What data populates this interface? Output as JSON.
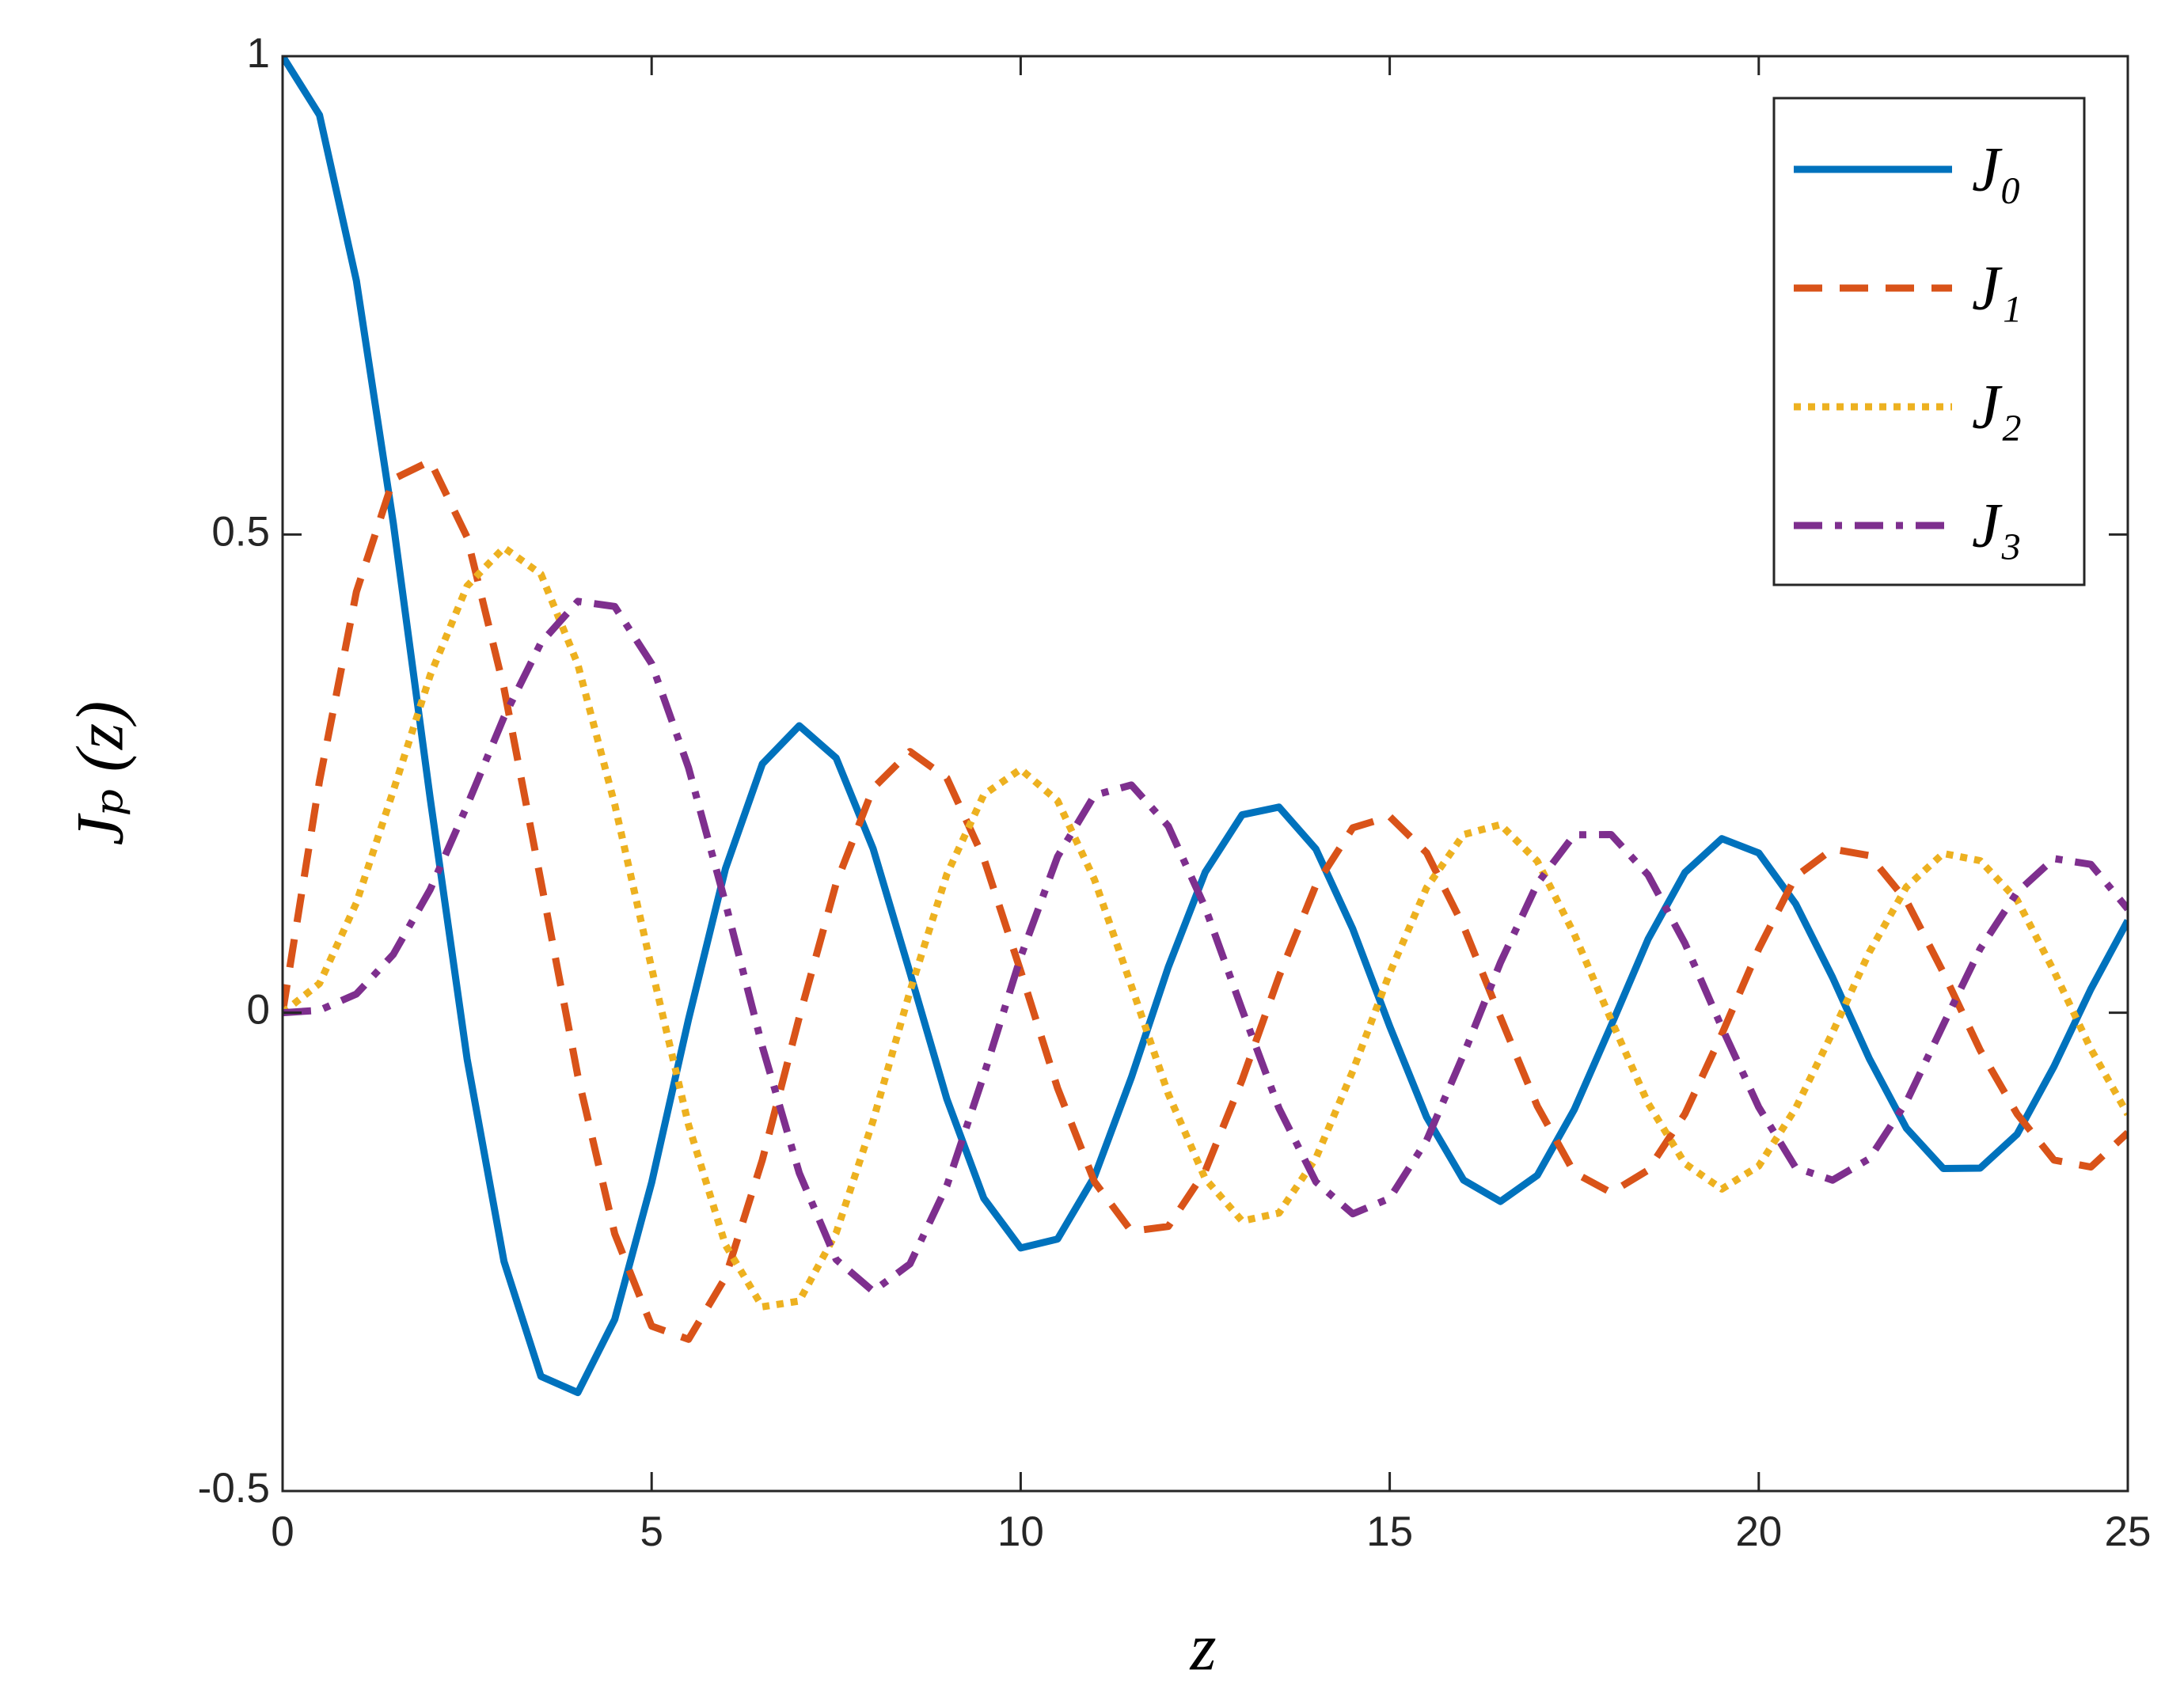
{
  "chart_data": {
    "type": "line",
    "xlabel": "z",
    "ylabel": "Jₚ (z)",
    "x": [
      0,
      0.5,
      1,
      1.5,
      2,
      2.5,
      3,
      3.5,
      4,
      4.5,
      5,
      5.5,
      6,
      6.5,
      7,
      7.5,
      8,
      8.5,
      9,
      9.5,
      10,
      10.5,
      11,
      11.5,
      12,
      12.5,
      13,
      13.5,
      14,
      14.5,
      15,
      15.5,
      16,
      16.5,
      17,
      17.5,
      18,
      18.5,
      19,
      19.5,
      20,
      20.5,
      21,
      21.5,
      22,
      22.5,
      23,
      23.5,
      24,
      24.5,
      25
    ],
    "series": [
      {
        "name": "J₀",
        "color": "#0072bd",
        "dash": "solid",
        "values": [
          1,
          0.9385,
          0.7652,
          0.5118,
          0.2239,
          -0.0484,
          -0.2601,
          -0.3801,
          -0.3971,
          -0.3205,
          -0.1776,
          -0.0068,
          0.1506,
          0.2601,
          0.3001,
          0.2663,
          0.1717,
          0.0419,
          -0.0903,
          -0.1939,
          -0.2459,
          -0.2366,
          -0.1712,
          -0.0677,
          0.0477,
          0.1469,
          0.2069,
          0.215,
          0.1711,
          0.0875,
          -0.0142,
          -0.1092,
          -0.1749,
          -0.1973,
          -0.1699,
          -0.1013,
          -0.0134,
          0.0768,
          0.1466,
          0.182,
          0.167,
          0.1138,
          0.0369,
          -0.0483,
          -0.1207,
          -0.1628,
          -0.1624,
          -0.127,
          -0.0562,
          0.0248,
          0.0963
        ]
      },
      {
        "name": "J₁",
        "color": "#d95319",
        "dash": "dashed",
        "values": [
          0,
          0.2423,
          0.4401,
          0.5579,
          0.5767,
          0.4971,
          0.3391,
          0.1374,
          -0.066,
          -0.2311,
          -0.3276,
          -0.3414,
          -0.2767,
          -0.1538,
          -0.0047,
          0.1352,
          0.2346,
          0.2731,
          0.2453,
          0.1613,
          0.0435,
          -0.0789,
          -0.1768,
          -0.2284,
          -0.2234,
          -0.1655,
          -0.0703,
          0.038,
          0.1334,
          0.1934,
          0.2051,
          0.1672,
          0.0904,
          -0.0047,
          -0.0977,
          -0.1672,
          -0.188,
          -0.1646,
          -0.1057,
          -0.0223,
          0.0668,
          0.1424,
          0.1711,
          0.1643,
          0.1172,
          0.0421,
          -0.0392,
          -0.1058,
          -0.154,
          -0.1613,
          -0.1254
        ]
      },
      {
        "name": "J₂",
        "color": "#edb120",
        "dash": "dotted",
        "values": [
          0,
          0.0306,
          0.1149,
          0.2321,
          0.3528,
          0.4461,
          0.4862,
          0.4586,
          0.3641,
          0.2178,
          0.0466,
          -0.1173,
          -0.2428,
          -0.3074,
          -0.3014,
          -0.2302,
          -0.113,
          0.0224,
          0.1448,
          0.2279,
          0.2546,
          0.2216,
          0.1391,
          0.028,
          -0.0849,
          -0.1734,
          -0.2177,
          -0.2094,
          -0.152,
          -0.0608,
          0.0415,
          0.1308,
          0.1862,
          0.1967,
          0.1584,
          0.0822,
          -0.0075,
          -0.0946,
          -0.1577,
          -0.1843,
          -0.1602,
          -0.0999,
          -0.0206,
          0.0636,
          0.1314,
          0.1665,
          0.159,
          0.118,
          0.0434,
          -0.038,
          -0.1063
        ]
      },
      {
        "name": "J₃",
        "color": "#7e2f8e",
        "dash": "dashdot",
        "values": [
          0,
          0.0026,
          0.0196,
          0.061,
          0.1289,
          0.2166,
          0.3091,
          0.3867,
          0.4301,
          0.4247,
          0.3649,
          0.2561,
          0.1148,
          -0.0354,
          -0.1675,
          -0.258,
          -0.2911,
          -0.2626,
          -0.1809,
          -0.0653,
          0.0583,
          0.1633,
          0.2274,
          0.2381,
          0.1951,
          0.11,
          0.0033,
          -0.1,
          -0.1768,
          -0.2102,
          -0.194,
          -0.1334,
          -0.0438,
          0.0524,
          0.135,
          0.186,
          0.1863,
          0.1441,
          0.0725,
          -0.0155,
          -0.0988,
          -0.1619,
          -0.175,
          -0.1525,
          -0.0933,
          -0.0125,
          0.0669,
          0.1259,
          0.1612,
          0.1551,
          0.1084
        ]
      }
    ],
    "xlim": [
      0,
      25
    ],
    "xticks": [
      0,
      5,
      10,
      15,
      20,
      25
    ],
    "ylim": [
      -0.5,
      1
    ],
    "yticks": [
      -0.5,
      0,
      0.5,
      1
    ],
    "grid": false,
    "legend": "upper right"
  }
}
